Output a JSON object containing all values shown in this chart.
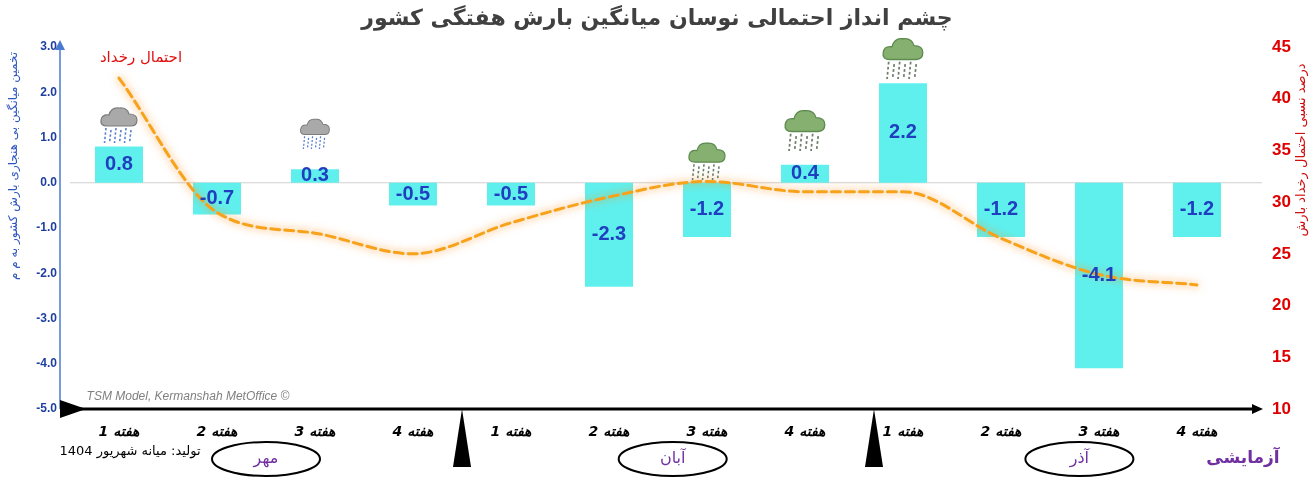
{
  "chart_data": {
    "type": "bar",
    "title": "چشم انداز احتمالی نوسان میانگین بارش هفتگی کشور",
    "ylabel": "تخمین میانگین بی هنجاری بارش کشور به م م",
    "y2label": "درصد نسبی احتمال رخداد بارش",
    "categories": [
      "هفته 1",
      "هفته 2",
      "هفته 3",
      "هفته 4",
      "هفته 1",
      "هفته 2",
      "هفته 3",
      "هفته 4",
      "هفته 1",
      "هفته 2",
      "هفته 3",
      "هفته 4"
    ],
    "series": [
      {
        "color": "#5ff0ee",
        "values": [
          0.8,
          -0.7,
          0.3,
          -0.5,
          -0.5,
          -2.3,
          -1.2,
          0.4,
          2.2,
          -1.2,
          -4.1,
          -1.2
        ],
        "value_labels": [
          "0.8",
          "-0.7",
          "0.3",
          "-0.5",
          "-0.5",
          "-2.3",
          "-1.2",
          "0.4",
          "2.2",
          "-1.2",
          "-4.1",
          "-1.2"
        ]
      },
      {
        "type": "line",
        "name": "احتمال رخداد",
        "color": "#f7a21b",
        "axis": "y2",
        "values": [
          42,
          29,
          27,
          25,
          28,
          30.5,
          32,
          31,
          31,
          26.5,
          23,
          22
        ]
      }
    ],
    "ylim": [
      -5,
      3
    ],
    "yticks": [
      {
        "value": -5,
        "label": "-5.0"
      },
      {
        "value": -4,
        "label": "-4.0"
      },
      {
        "value": -3,
        "label": "-3.0"
      },
      {
        "value": -2,
        "label": "-2.0"
      },
      {
        "value": -1,
        "label": "-1.0"
      },
      {
        "value": 0,
        "label": "0.0"
      },
      {
        "value": 1,
        "label": "1.0"
      },
      {
        "value": 2,
        "label": "2.0"
      },
      {
        "value": 3,
        "label": "3.0"
      }
    ],
    "y2lim": [
      10,
      45
    ],
    "y2ticks": [
      10,
      15,
      20,
      25,
      30,
      35,
      40,
      45
    ],
    "ref_lines": [
      {
        "axis": "y",
        "value": 0,
        "color": "#d0d0d0"
      }
    ],
    "line_style": "dashed",
    "marker": "none",
    "annotations": [
      "مهر",
      "آبان",
      "آذر",
      "آزمایشی",
      "تولید: میانه شهریور 1404",
      "TSM Model, Kermanshah MetOffice ©"
    ]
  }
}
